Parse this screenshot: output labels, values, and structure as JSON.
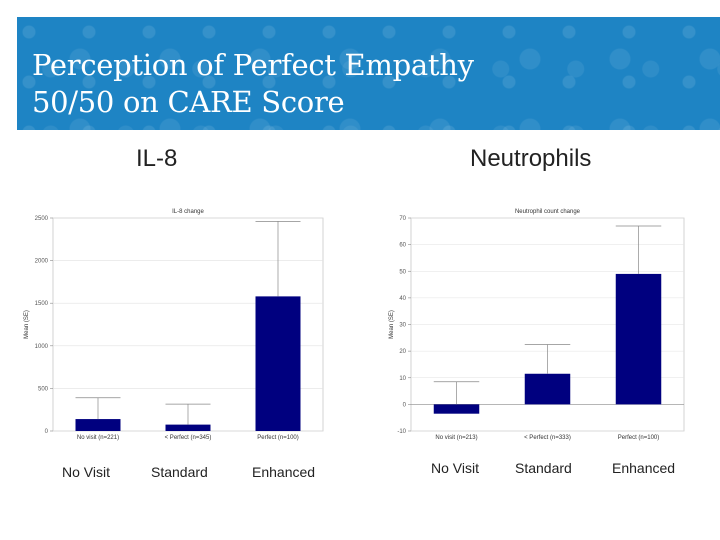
{
  "slide": {
    "title_line1": "Perception of Perfect Empathy",
    "title_line2": "50/50 on CARE Score",
    "colors": {
      "banner": "#1e84c4",
      "bar": "#00007f"
    }
  },
  "panels": [
    {
      "heading": "IL-8",
      "categories": [
        "No Visit",
        "Standard",
        "Enhanced"
      ]
    },
    {
      "heading": "Neutrophils",
      "categories": [
        "No Visit",
        "Standard",
        "Enhanced"
      ]
    }
  ],
  "chart_data": [
    {
      "type": "bar",
      "title": "IL-8 change",
      "ylabel": "Mean (SE)",
      "categories": [
        "No visit (n=221)",
        "< Perfect (n=345)",
        "Perfect (n=100)"
      ],
      "values": [
        140,
        75,
        1580
      ],
      "errors": [
        250,
        240,
        880
      ],
      "ylim": [
        0,
        2500
      ],
      "yticks": [
        0,
        500,
        1000,
        1500,
        2000,
        2500
      ],
      "grid": true
    },
    {
      "type": "bar",
      "title": "Neutrophil count change",
      "ylabel": "Mean (SE)",
      "categories": [
        "No visit (n=213)",
        "< Perfect (n=333)",
        "Perfect (n=100)"
      ],
      "values": [
        -3.5,
        11.5,
        49
      ],
      "errors": [
        12,
        11,
        18
      ],
      "ylim": [
        -10,
        70
      ],
      "yticks": [
        -10,
        0,
        10,
        20,
        30,
        40,
        50,
        60,
        70
      ],
      "grid": true
    }
  ]
}
